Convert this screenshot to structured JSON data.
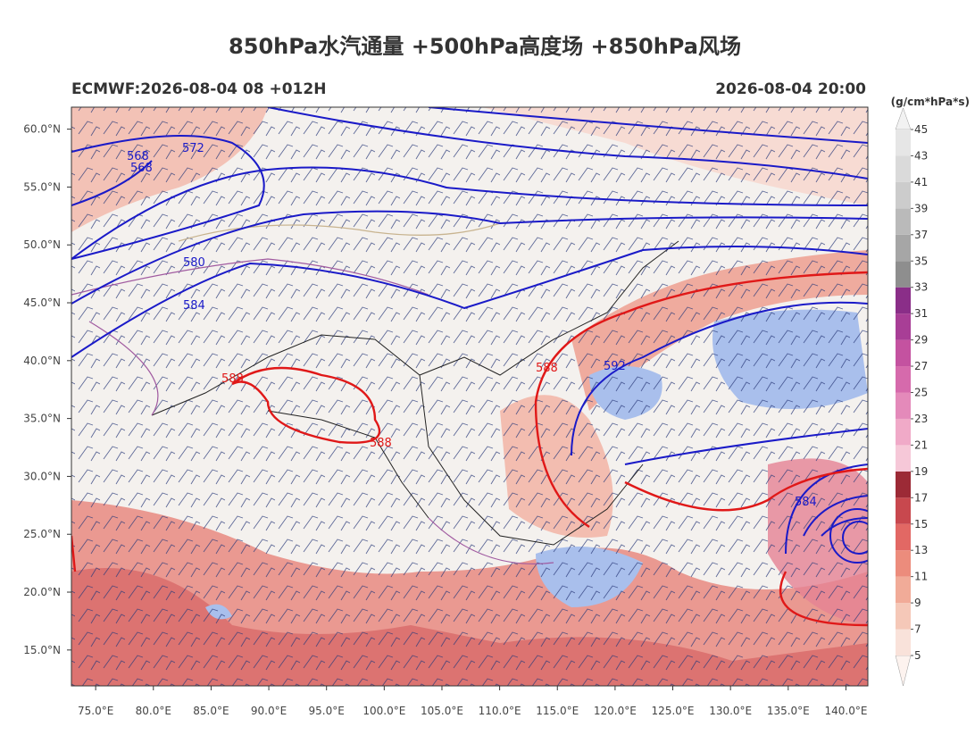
{
  "title": "850hPa水汽通量 +500hPa高度场 +850hPa风场",
  "model_run": "ECMWF:2026-08-04 08 +012H",
  "valid_time": "2026-08-04 20:00",
  "map": {
    "xlim": [
      72.9,
      141.9
    ],
    "ylim": [
      11.9,
      61.9
    ],
    "xticks": [
      {
        "value": 75,
        "label": "75.0°E"
      },
      {
        "value": 80,
        "label": "80.0°E"
      },
      {
        "value": 85,
        "label": "85.0°E"
      },
      {
        "value": 90,
        "label": "90.0°E"
      },
      {
        "value": 95,
        "label": "95.0°E"
      },
      {
        "value": 100,
        "label": "100.0°E"
      },
      {
        "value": 105,
        "label": "105.0°E"
      },
      {
        "value": 110,
        "label": "110.0°E"
      },
      {
        "value": 115,
        "label": "115.0°E"
      },
      {
        "value": 120,
        "label": "120.0°E"
      },
      {
        "value": 125,
        "label": "125.0°E"
      },
      {
        "value": 130,
        "label": "130.0°E"
      },
      {
        "value": 135,
        "label": "135.0°E"
      },
      {
        "value": 140,
        "label": "140.0°E"
      }
    ],
    "yticks": [
      {
        "value": 15,
        "label": "15.0°N"
      },
      {
        "value": 20,
        "label": "20.0°N"
      },
      {
        "value": 25,
        "label": "25.0°N"
      },
      {
        "value": 30,
        "label": "30.0°N"
      },
      {
        "value": 35,
        "label": "35.0°N"
      },
      {
        "value": 40,
        "label": "40.0°N"
      },
      {
        "value": 45,
        "label": "45.0°N"
      },
      {
        "value": 50,
        "label": "50.0°N"
      },
      {
        "value": 55,
        "label": "55.0°N"
      },
      {
        "value": 60,
        "label": "60.0°N"
      }
    ]
  },
  "colorbar": {
    "unit": "(g/cm*hPa*s)",
    "ticks": [
      5,
      7,
      9,
      11,
      13,
      15,
      17,
      19,
      21,
      23,
      25,
      27,
      29,
      31,
      33,
      35,
      37,
      39,
      41,
      43,
      45
    ],
    "colors": [
      "#f9e2da",
      "#f5c8b8",
      "#f1ab98",
      "#ec8c7c",
      "#e26864",
      "#c8484e",
      "#9c2a36",
      "#f6c8d8",
      "#f0aac8",
      "#e48aba",
      "#d66aac",
      "#c452a0",
      "#a83e96",
      "#8a2e88",
      "#8e8e8e",
      "#a6a6a6",
      "#bababa",
      "#cccccc",
      "#dadada",
      "#e6e6e6"
    ],
    "under_color": "#fdf3ef",
    "over_color": "#f2f2f2"
  },
  "contour_labels": [
    "568",
    "568",
    "572",
    "580",
    "584",
    "588",
    "588",
    "588",
    "592",
    "584"
  ]
}
